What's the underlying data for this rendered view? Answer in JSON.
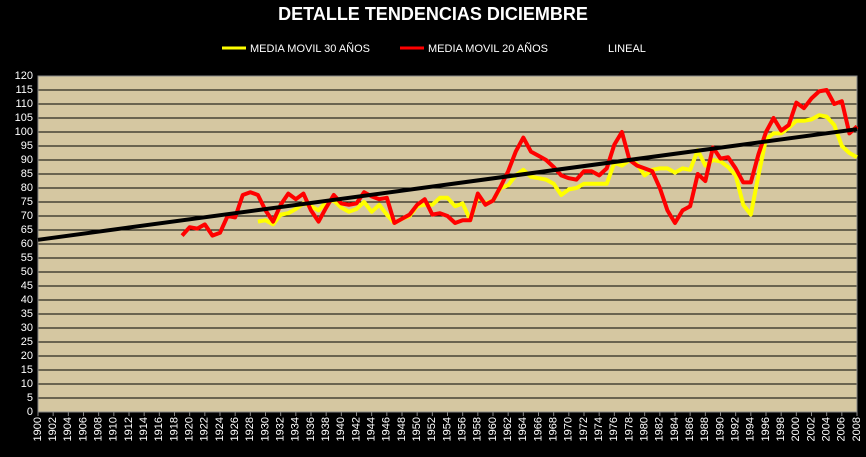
{
  "chart_data": {
    "type": "line",
    "title": "DETALLE TENDENCIAS DICIEMBRE",
    "x": [
      1900,
      1901,
      1902,
      1903,
      1904,
      1905,
      1906,
      1907,
      1908,
      1909,
      1910,
      1911,
      1912,
      1913,
      1914,
      1915,
      1916,
      1917,
      1918,
      1919,
      1920,
      1921,
      1922,
      1923,
      1924,
      1925,
      1926,
      1927,
      1928,
      1929,
      1930,
      1931,
      1932,
      1933,
      1934,
      1935,
      1936,
      1937,
      1938,
      1939,
      1940,
      1941,
      1942,
      1943,
      1944,
      1945,
      1946,
      1947,
      1948,
      1949,
      1950,
      1951,
      1952,
      1953,
      1954,
      1955,
      1956,
      1957,
      1958,
      1959,
      1960,
      1961,
      1962,
      1963,
      1964,
      1965,
      1966,
      1967,
      1968,
      1969,
      1970,
      1971,
      1972,
      1973,
      1974,
      1975,
      1976,
      1977,
      1978,
      1979,
      1980,
      1981,
      1982,
      1983,
      1984,
      1985,
      1986,
      1987,
      1988,
      1989,
      1990,
      1991,
      1992,
      1993,
      1994,
      1995,
      1996,
      1997,
      1998,
      1999,
      2000,
      2001,
      2002,
      2003,
      2004,
      2005,
      2006,
      2007,
      2008
    ],
    "series": [
      {
        "name": "MEDIA MOVIL 30 AÑOS",
        "color": "#ffff00",
        "values": [
          null,
          null,
          null,
          null,
          null,
          null,
          null,
          null,
          null,
          null,
          null,
          null,
          null,
          null,
          null,
          null,
          null,
          null,
          null,
          null,
          null,
          null,
          null,
          null,
          null,
          null,
          null,
          null,
          null,
          68,
          68.5,
          67,
          70.5,
          71,
          72.5,
          74.5,
          73.5,
          72,
          75,
          75.5,
          73,
          71.5,
          72.5,
          75,
          71.5,
          74,
          70.5,
          67.5,
          69,
          70,
          73.5,
          74,
          74,
          76.5,
          76.5,
          73.5,
          74.5,
          68.5,
          77,
          74.5,
          75.5,
          80,
          81,
          84.5,
          86.5,
          84,
          83.5,
          83,
          81.5,
          77.5,
          79.5,
          80,
          81.5,
          81.5,
          81.5,
          81.5,
          89,
          88,
          90,
          88.5,
          84.5,
          86.5,
          87,
          87,
          85.5,
          87,
          86.5,
          93.5,
          88,
          90,
          89.5,
          87.5,
          84.5,
          74,
          70.5,
          84.5,
          97.5,
          99.5,
          99.5,
          101.5,
          104,
          104,
          104.5,
          106,
          105.5,
          102.5,
          95,
          92.5,
          91
        ]
      },
      {
        "name": "MEDIA MOVIL 20 AÑOS",
        "color": "#ff0000",
        "values": [
          null,
          null,
          null,
          null,
          null,
          null,
          null,
          null,
          null,
          null,
          null,
          null,
          null,
          null,
          null,
          null,
          null,
          null,
          null,
          63,
          66,
          65.5,
          67,
          63,
          64,
          70,
          69.5,
          77.5,
          78.5,
          77.5,
          72,
          68,
          74,
          78,
          76,
          78,
          72,
          68,
          73,
          77.5,
          74.5,
          74,
          74.5,
          78.5,
          77,
          76,
          76.5,
          67.5,
          69,
          70.5,
          74,
          76,
          70.5,
          71,
          70,
          67.5,
          68.5,
          68.5,
          78,
          74,
          75.5,
          80.5,
          86,
          93,
          98,
          93,
          91.5,
          90,
          87.5,
          84.5,
          83.5,
          83,
          86,
          86,
          84.5,
          87,
          95.5,
          100,
          90,
          88,
          87,
          86,
          80,
          72,
          67.5,
          72,
          73.5,
          85,
          82.5,
          94.5,
          90.5,
          91,
          87,
          82,
          82,
          92,
          100,
          105,
          100.5,
          102.5,
          110.5,
          108.5,
          112,
          114.5,
          115,
          110,
          111,
          99.5,
          102
        ]
      },
      {
        "name": "LINEAL",
        "color": "#000000",
        "x": [
          1900,
          2008
        ],
        "values": [
          61.5,
          101
        ]
      }
    ],
    "xlim": [
      1900,
      2008
    ],
    "xticks": [
      1900,
      1902,
      1904,
      1906,
      1908,
      1910,
      1912,
      1914,
      1916,
      1918,
      1920,
      1922,
      1924,
      1926,
      1928,
      1930,
      1932,
      1934,
      1936,
      1938,
      1940,
      1942,
      1944,
      1946,
      1948,
      1950,
      1952,
      1954,
      1956,
      1958,
      1960,
      1962,
      1964,
      1966,
      1968,
      1970,
      1972,
      1974,
      1976,
      1978,
      1980,
      1982,
      1984,
      1986,
      1988,
      1990,
      1992,
      1994,
      1996,
      1998,
      2000,
      2002,
      2004,
      2006,
      2008
    ],
    "ylim": [
      0,
      120
    ],
    "yticks": [
      0,
      5,
      10,
      15,
      20,
      25,
      30,
      35,
      40,
      45,
      50,
      55,
      60,
      65,
      70,
      75,
      80,
      85,
      90,
      95,
      100,
      105,
      110,
      115,
      120
    ],
    "grid": true,
    "legend": "top"
  }
}
